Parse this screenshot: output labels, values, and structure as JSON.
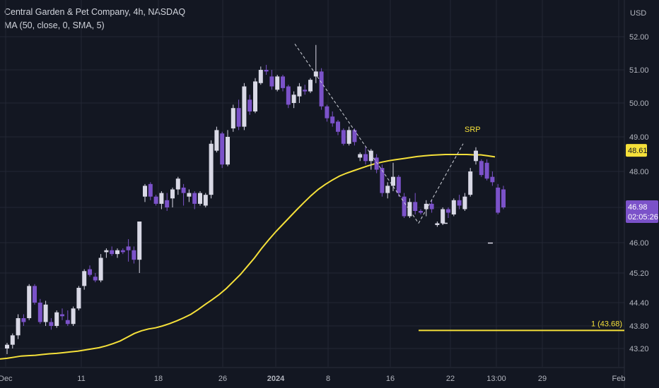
{
  "header": {
    "symbol_line": "Central Garden & Pet Company, 4h, NASDAQ",
    "indicator_line": "MA (50, close, 0, SMA, 5)"
  },
  "currency": "USD",
  "colors": {
    "background": "#131722",
    "grid": "#232734",
    "up_candle": "#d9d9e6",
    "down_candle": "#7b52c9",
    "ma_line": "#f5e03a",
    "axis_text": "#b2b5be",
    "dashed_line": "#d1d4dc"
  },
  "chart_data": {
    "type": "candlestick",
    "y_axis": {
      "ticks": [
        "52.00",
        "51.00",
        "50.00",
        "49.00",
        "48.00",
        "47.00",
        "46.00",
        "45.20",
        "44.40",
        "43.80",
        "43.20"
      ]
    },
    "x_axis": {
      "ticks": [
        "Dec",
        "11",
        "18",
        "26",
        "2024",
        "8",
        "16",
        "22",
        "13:00",
        "29",
        "Feb"
      ]
    },
    "candles": [
      [
        43.2,
        43.35,
        43.05,
        43.3
      ],
      [
        43.3,
        43.6,
        43.2,
        43.55
      ],
      [
        43.55,
        44.1,
        43.45,
        44.0
      ],
      [
        44.0,
        44.1,
        43.8,
        43.9
      ],
      [
        44.0,
        44.9,
        43.95,
        44.85
      ],
      [
        44.85,
        44.9,
        44.35,
        44.4
      ],
      [
        44.4,
        44.5,
        43.85,
        43.9
      ],
      [
        43.9,
        44.45,
        43.8,
        44.35
      ],
      [
        43.9,
        44.0,
        43.7,
        43.8
      ],
      [
        43.8,
        44.2,
        43.75,
        44.15
      ],
      [
        44.1,
        44.25,
        43.95,
        44.05
      ],
      [
        43.95,
        44.2,
        43.8,
        43.85
      ],
      [
        43.85,
        44.3,
        43.8,
        44.25
      ],
      [
        44.25,
        44.85,
        44.2,
        44.8
      ],
      [
        44.85,
        45.3,
        44.75,
        45.25
      ],
      [
        45.3,
        45.4,
        45.1,
        45.15
      ],
      [
        45.1,
        45.2,
        44.95,
        45.0
      ],
      [
        45.0,
        45.7,
        44.95,
        45.6
      ],
      [
        45.75,
        45.85,
        45.6,
        45.8
      ],
      [
        45.8,
        45.9,
        45.65,
        45.7
      ],
      [
        45.7,
        45.85,
        45.6,
        45.8
      ],
      [
        45.8,
        45.85,
        45.7,
        45.75
      ],
      [
        45.9,
        46.1,
        45.5,
        45.8
      ],
      [
        45.8,
        45.9,
        45.45,
        45.55
      ],
      [
        45.55,
        46.6,
        45.2,
        46.6
      ],
      [
        47.3,
        47.65,
        47.15,
        47.6
      ],
      [
        47.65,
        47.7,
        47.2,
        47.3
      ],
      [
        47.3,
        47.35,
        47.05,
        47.1
      ],
      [
        47.1,
        47.45,
        46.95,
        47.4
      ],
      [
        47.2,
        47.4,
        46.9,
        47.0
      ],
      [
        47.25,
        47.55,
        47.0,
        47.5
      ],
      [
        47.5,
        47.85,
        47.35,
        47.8
      ],
      [
        47.55,
        47.65,
        47.05,
        47.4
      ],
      [
        47.3,
        47.5,
        47.15,
        47.4
      ],
      [
        47.4,
        47.45,
        46.95,
        47.1
      ],
      [
        47.1,
        47.45,
        47.05,
        47.4
      ],
      [
        47.05,
        47.4,
        47.0,
        47.35
      ],
      [
        47.35,
        48.9,
        47.25,
        48.8
      ],
      [
        48.6,
        49.3,
        48.55,
        49.2
      ],
      [
        49.1,
        49.15,
        48.1,
        48.2
      ],
      [
        48.2,
        49.2,
        48.15,
        49.0
      ],
      [
        49.25,
        49.95,
        49.15,
        49.85
      ],
      [
        49.85,
        50.1,
        49.2,
        49.3
      ],
      [
        49.3,
        50.6,
        49.2,
        50.5
      ],
      [
        50.1,
        50.25,
        49.65,
        49.75
      ],
      [
        49.75,
        50.75,
        49.7,
        50.65
      ],
      [
        50.6,
        51.1,
        50.55,
        51.0
      ],
      [
        51.0,
        51.15,
        50.85,
        50.95
      ],
      [
        50.8,
        51.0,
        50.4,
        50.5
      ],
      [
        50.4,
        50.85,
        50.35,
        50.8
      ],
      [
        50.8,
        50.85,
        50.35,
        50.45
      ],
      [
        50.5,
        50.55,
        49.85,
        49.95
      ],
      [
        50.0,
        50.35,
        49.85,
        50.25
      ],
      [
        50.2,
        50.6,
        50.0,
        50.5
      ],
      [
        50.4,
        50.55,
        50.25,
        50.35
      ],
      [
        50.35,
        50.75,
        50.3,
        50.7
      ],
      [
        50.8,
        51.75,
        50.6,
        50.95
      ],
      [
        50.95,
        51.05,
        49.8,
        49.9
      ],
      [
        49.9,
        49.95,
        49.45,
        49.55
      ],
      [
        49.6,
        49.75,
        49.3,
        49.4
      ],
      [
        49.45,
        49.5,
        49.05,
        49.15
      ],
      [
        49.2,
        49.25,
        48.75,
        48.8
      ],
      [
        48.8,
        49.3,
        48.75,
        49.2
      ],
      [
        49.2,
        49.25,
        48.75,
        48.85
      ],
      [
        48.4,
        48.55,
        48.3,
        48.5
      ],
      [
        48.5,
        48.7,
        48.2,
        48.3
      ],
      [
        48.3,
        48.65,
        48.05,
        48.6
      ],
      [
        48.4,
        48.5,
        47.95,
        48.05
      ],
      [
        48.1,
        48.2,
        47.3,
        47.4
      ],
      [
        47.4,
        47.7,
        47.25,
        47.6
      ],
      [
        47.6,
        48.25,
        47.45,
        47.85
      ],
      [
        47.85,
        47.9,
        47.3,
        47.4
      ],
      [
        47.3,
        47.4,
        46.7,
        46.75
      ],
      [
        46.75,
        47.25,
        46.7,
        47.15
      ],
      [
        47.15,
        47.4,
        46.8,
        46.9
      ],
      [
        46.9,
        46.95,
        46.8,
        46.85
      ],
      [
        46.95,
        47.2,
        46.75,
        47.1
      ],
      [
        47.1,
        47.2,
        46.85,
        46.95
      ],
      [
        46.5,
        46.6,
        46.45,
        46.55
      ],
      [
        46.55,
        47.0,
        46.5,
        46.95
      ],
      [
        46.95,
        47.0,
        46.7,
        46.85
      ],
      [
        46.8,
        47.25,
        46.75,
        47.2
      ],
      [
        47.2,
        47.35,
        46.95,
        47.05
      ],
      [
        46.95,
        47.4,
        46.9,
        47.3
      ],
      [
        47.35,
        48.1,
        47.3,
        48.0
      ],
      [
        48.3,
        48.7,
        48.2,
        48.6
      ],
      [
        48.3,
        48.35,
        47.85,
        47.9
      ],
      [
        48.25,
        48.35,
        47.75,
        47.8
      ],
      [
        47.85,
        48.0,
        47.6,
        47.7
      ],
      [
        47.55,
        47.65,
        46.8,
        46.85
      ],
      [
        47.5,
        47.6,
        46.95,
        47.0
      ]
    ],
    "moving_average": {
      "name": "MA (50, close, 0, SMA, 5)",
      "values": [
        42.92,
        42.94,
        42.97,
        43.0,
        43.01,
        43.02,
        43.04,
        43.06,
        43.07,
        43.09,
        43.11,
        43.13,
        43.16,
        43.19,
        43.22,
        43.27,
        43.33,
        43.4,
        43.5,
        43.6,
        43.67,
        43.72,
        43.75,
        43.8,
        43.86,
        43.93,
        44.01,
        44.1,
        44.22,
        44.35,
        44.48,
        44.62,
        44.78,
        44.97,
        45.16,
        45.38,
        45.6,
        45.85,
        46.08,
        46.31,
        46.52,
        46.73,
        46.94,
        47.14,
        47.33,
        47.5,
        47.64,
        47.76,
        47.87,
        47.95,
        48.02,
        48.09,
        48.16,
        48.22,
        48.27,
        48.31,
        48.34,
        48.37,
        48.4,
        48.43,
        48.45,
        48.47,
        48.48,
        48.49,
        48.49,
        48.49,
        48.49,
        48.48,
        48.48,
        48.45,
        48.42
      ]
    },
    "annotations": [
      {
        "type": "label",
        "text": "SRP"
      },
      {
        "type": "horizontal_line",
        "text": "1 (43.68)",
        "value": 43.68
      }
    ],
    "price_tags": [
      {
        "text": "48.61",
        "value": 48.61,
        "kind": "ma"
      },
      {
        "text": "46.98",
        "subtext": "02:05:26",
        "value": 46.98,
        "kind": "last"
      }
    ]
  }
}
